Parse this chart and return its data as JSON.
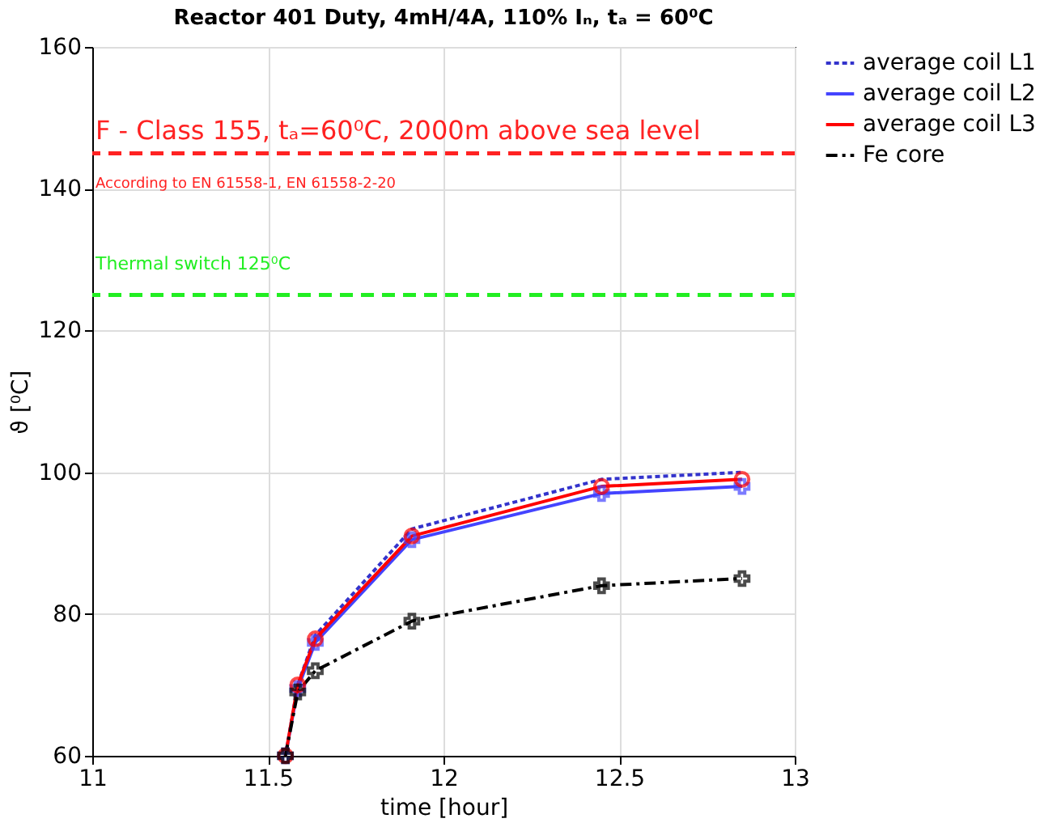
{
  "chart_data": {
    "type": "line",
    "title": "Reactor 401 Duty, 4mH/4A, 110% Iₙ, tₐ = 60⁰C",
    "xlabel": "time [hour]",
    "ylabel": "ϑ [⁰C]",
    "x": [
      11.55,
      11.585,
      11.635,
      11.91,
      12.45,
      12.85
    ],
    "series": [
      {
        "name": "average coil L1",
        "color": "#3333cc",
        "values": [
          60,
          70,
          77,
          92,
          99,
          100
        ],
        "line_style": "dotted",
        "marker": "none"
      },
      {
        "name": "average coil L2",
        "color": "#4444ff",
        "values": [
          60,
          69.5,
          76,
          90.5,
          97,
          98
        ],
        "line_style": "solid",
        "marker": "cross"
      },
      {
        "name": "average coil L3",
        "color": "#ff0000",
        "values": [
          60,
          70,
          76.5,
          91,
          98,
          99
        ],
        "line_style": "solid",
        "marker": "circle"
      },
      {
        "name": "Fe core",
        "color": "#000000",
        "values": [
          60,
          69,
          72,
          79,
          84,
          85
        ],
        "line_style": "dashed",
        "marker": "cross"
      }
    ],
    "xlim": [
      11,
      13
    ],
    "xticks": [
      11,
      11.5,
      12,
      12.5,
      13
    ],
    "ylim": [
      60,
      160
    ],
    "yticks": [
      60,
      80,
      100,
      120,
      140,
      160
    ],
    "ref_lines": [
      {
        "axis": "y",
        "value": 145,
        "color": "#ff2222",
        "line_style": "dashed"
      },
      {
        "axis": "y",
        "value": 125,
        "label": "Thermal switch 125⁰C",
        "color": "#22ee22",
        "line_style": "dashed"
      }
    ],
    "annotations": [
      "F - Class 155, tₐ=60⁰C, 2000m above sea level",
      "According to EN 61558-1, EN 61558-2-20"
    ],
    "grid": true,
    "legend": "top right"
  }
}
